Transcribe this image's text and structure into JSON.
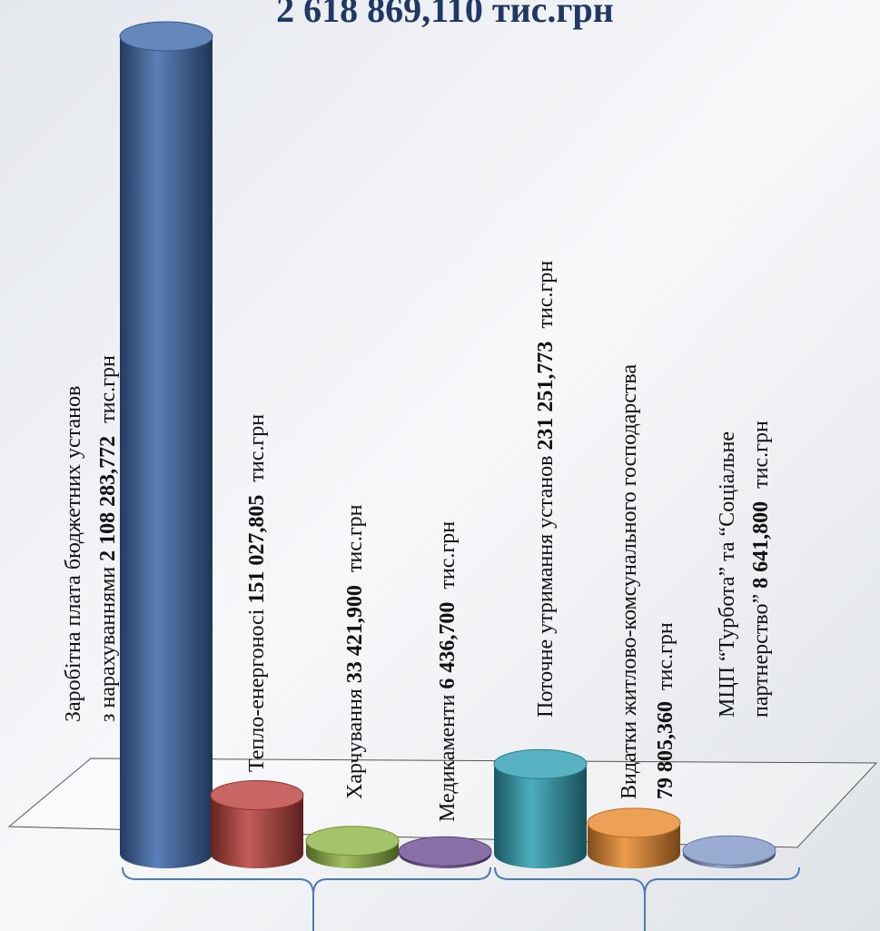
{
  "chart_data": {
    "type": "bar",
    "title": "2 618 869,110 тис.грн",
    "unit": "тис.грн",
    "categories": [
      [
        "Заробітна плата бюджетних установ",
        "з нарахуваннями"
      ],
      [
        "Тепло-енергоносі"
      ],
      [
        "Харчування"
      ],
      [
        "Медикаменти"
      ],
      [
        "Поточне утримання установ"
      ],
      [
        "Видатки житлово-комсунального господарства"
      ],
      [
        "МЦП “Турбота” та “Соціальне",
        "партнерство”"
      ]
    ],
    "values": [
      2108283.772,
      151027.805,
      33421.9,
      6436.7,
      231251.773,
      79805.36,
      8641.8
    ],
    "value_labels": [
      "2 108 283,772",
      "151 027,805",
      "33 421,900",
      "6 436,700",
      "231 251,773",
      "79 805,360",
      "8 641,800"
    ],
    "colors": [
      "#3d6aab",
      "#b9403b",
      "#8fb443",
      "#6c4d92",
      "#2f9fb3",
      "#e98a2c",
      "#8096c4"
    ]
  }
}
